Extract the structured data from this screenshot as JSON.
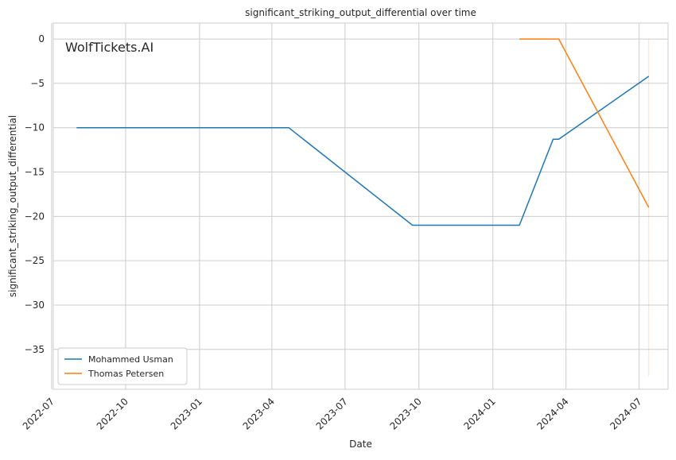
{
  "watermark": "WolfTickets.AI",
  "colors": {
    "background": "#ffffff",
    "grid": "#cccccc",
    "axis_text": "#262626",
    "mohammed_usman": "#1f77b4",
    "thomas_petersen": "#ff7f0e",
    "watermark": "#c8c8c8"
  },
  "chart_data": {
    "type": "line",
    "title": "significant_striking_output_differential over time",
    "xlabel": "Date",
    "ylabel": "significant_striking_output_differential",
    "x_is_date": true,
    "xlim": [
      "2022-07-03",
      "2024-08-06"
    ],
    "ylim": [
      -39.5,
      1.8
    ],
    "grid": true,
    "legend_placement": "lower-left",
    "x_ticks": [
      "2022-07",
      "2022-10",
      "2023-01",
      "2023-04",
      "2023-07",
      "2023-10",
      "2024-01",
      "2024-04",
      "2024-07"
    ],
    "x_tick_dates": [
      "2022-07-01",
      "2022-10-01",
      "2023-01-01",
      "2023-04-01",
      "2023-07-01",
      "2023-10-01",
      "2024-01-01",
      "2024-04-01",
      "2024-07-01"
    ],
    "y_ticks": [
      0,
      -5,
      -10,
      -15,
      -20,
      -25,
      -30,
      -35
    ],
    "y_tick_labels": [
      "0",
      "−5",
      "−10",
      "−15",
      "−20",
      "−25",
      "−30",
      "−35"
    ],
    "series": [
      {
        "name": "Mohammed Usman",
        "color": "#1f77b4",
        "points": [
          [
            "2022-08-01",
            -10
          ],
          [
            "2023-04-22",
            -10
          ],
          [
            "2023-09-23",
            -21
          ],
          [
            "2024-02-03",
            -21
          ],
          [
            "2024-03-16",
            -11.3
          ],
          [
            "2024-03-23",
            -11.3
          ],
          [
            "2024-07-13",
            -4.2
          ]
        ]
      },
      {
        "name": "Thomas Petersen",
        "color": "#ff7f0e",
        "points": [
          [
            "2024-02-03",
            0
          ],
          [
            "2024-03-23",
            0
          ],
          [
            "2024-07-13",
            -19
          ]
        ]
      }
    ],
    "reference_line": {
      "x": "2024-07-13",
      "y_range": [
        0,
        -38
      ],
      "color": "#ff7f0e"
    }
  }
}
